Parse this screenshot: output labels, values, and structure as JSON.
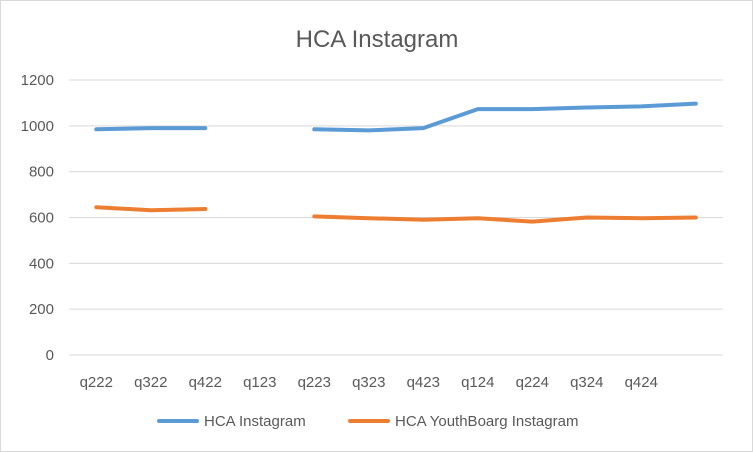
{
  "chart_data": {
    "type": "line",
    "title": "HCA Instagram",
    "xlabel": "",
    "ylabel": "",
    "categories": [
      "q222",
      "q322",
      "q422",
      "q123",
      "q223",
      "q323",
      "q423",
      "q124",
      "q224",
      "q324",
      "q424",
      ""
    ],
    "ylim": [
      0,
      1200
    ],
    "yticks": [
      0,
      200,
      400,
      600,
      800,
      1000,
      1200
    ],
    "grid": true,
    "legend": "bottom",
    "series": [
      {
        "name": "HCA Instagram",
        "color": "#5b9bd5",
        "values": [
          985,
          990,
          990,
          null,
          985,
          980,
          990,
          1073,
          1073,
          1080,
          1085,
          1097
        ]
      },
      {
        "name": "HCA YouthBoarg Instagram",
        "color": "#ed7d31",
        "values": [
          645,
          632,
          637,
          null,
          605,
          597,
          590,
          597,
          582,
          600,
          597,
          600
        ]
      }
    ]
  }
}
